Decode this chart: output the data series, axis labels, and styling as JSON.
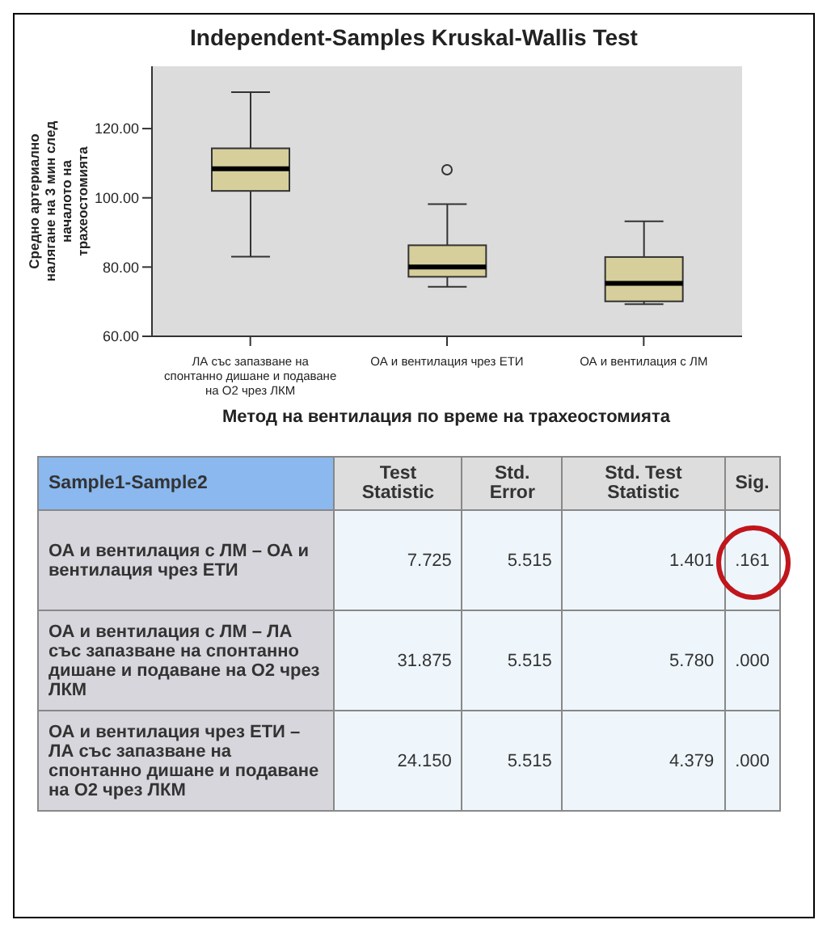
{
  "chart_data": [
    {
      "type": "box",
      "title": "Independent-Samples Kruskal-Wallis Test",
      "xlabel": "Метод на вентилация по време на трахеостомията",
      "ylabel": "Средно артериално налягане на 3 мин след началото на трахеостомията",
      "categories": [
        "ЛА със запазване на спонтанно дишане и подаване на О2 чрез ЛКМ",
        "ОА и вентилация чрез ЕТИ",
        "ОА и вентилация  с ЛМ"
      ],
      "boxes": [
        {
          "low": 83,
          "q1": 102,
          "median": 108.4,
          "q3": 114.3,
          "high": 130.5
        },
        {
          "low": 74.3,
          "q1": 77.2,
          "median": 80,
          "q3": 86.3,
          "high": 98.2,
          "outliers": [
            108.1
          ]
        },
        {
          "low": 69.3,
          "q1": 70.1,
          "median": 75.3,
          "q3": 82.9,
          "high": 93.2
        }
      ],
      "color": "#d6cf9c",
      "ylim": [
        60,
        138
      ],
      "yticks": [
        {
          "value": 60,
          "label": "60.00"
        },
        {
          "value": 80,
          "label": "80.00"
        },
        {
          "value": 100,
          "label": "100.00"
        },
        {
          "value": 120,
          "label": "120.00"
        }
      ]
    },
    {
      "type": "other",
      "annotations": [
        "Sample1-Sample2",
        "Test Statistic",
        "Std. Error",
        "Std. Test Statistic",
        "Sig.",
        "ОА и вентилация  с ЛМ – ОА и вентилация  чрез ЕТИ",
        "7.725",
        "5.515",
        "1.401",
        ".161",
        "ОА и вентилация  с ЛМ – ЛА със запазване на спонтанно дишане и подаване на О2 чрез ЛКМ",
        "31.875",
        "5.515",
        "5.780",
        ".000",
        "ОА и вентилация  чрез ЕТИ – ЛА със запазване на спонтанно дишане и подаване на О2 чрез ЛКМ",
        "24.150",
        "5.515",
        "4.379",
        ".000"
      ]
    }
  ]
}
